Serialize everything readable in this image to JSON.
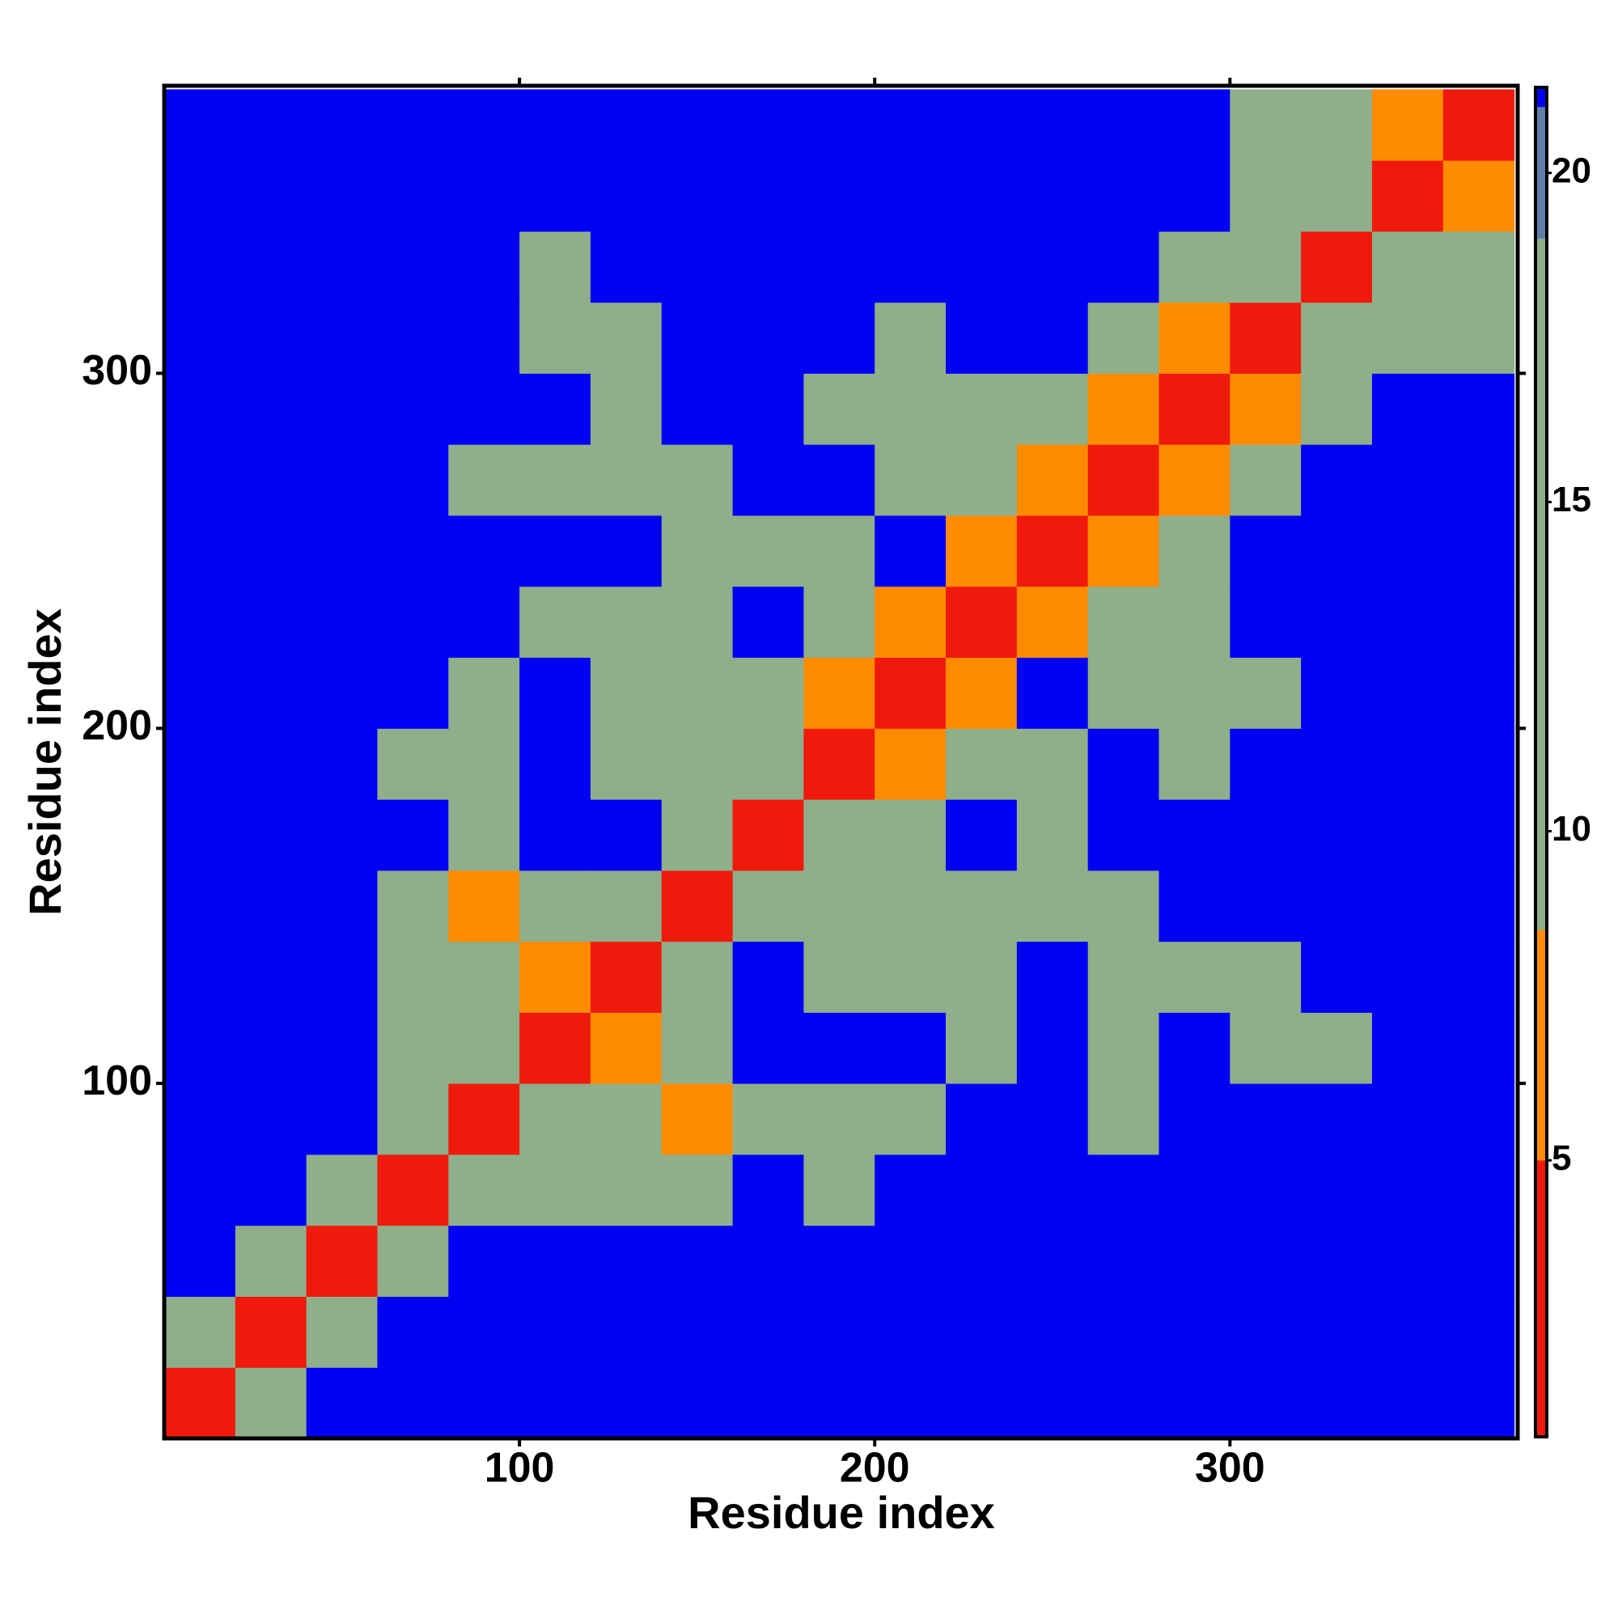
{
  "chart_data": {
    "type": "heatmap",
    "xlabel": "Residue index",
    "ylabel": "Residue index",
    "x": [
      10,
      30,
      50,
      70,
      90,
      110,
      130,
      150,
      170,
      190,
      210,
      230,
      250,
      270,
      290,
      310,
      330,
      350,
      370
    ],
    "y": [
      10,
      30,
      50,
      70,
      90,
      110,
      130,
      150,
      170,
      190,
      210,
      230,
      250,
      270,
      290,
      310,
      330,
      350,
      370
    ],
    "z": [
      [
        4,
        12,
        21,
        21,
        21,
        21,
        21,
        21,
        21,
        21,
        21,
        21,
        21,
        21,
        21,
        21,
        21,
        21,
        21
      ],
      [
        12,
        4,
        12,
        21,
        21,
        21,
        21,
        21,
        21,
        21,
        21,
        21,
        21,
        21,
        21,
        21,
        21,
        21,
        21
      ],
      [
        21,
        12,
        4,
        10,
        21,
        21,
        21,
        21,
        21,
        21,
        21,
        21,
        21,
        21,
        21,
        21,
        21,
        21,
        21
      ],
      [
        21,
        21,
        10,
        4,
        10,
        14,
        16,
        16,
        21,
        14,
        21,
        21,
        21,
        21,
        21,
        21,
        21,
        21,
        21
      ],
      [
        21,
        21,
        21,
        10,
        4,
        10,
        10,
        8,
        14,
        14,
        16,
        21,
        21,
        12,
        21,
        21,
        21,
        21,
        21
      ],
      [
        21,
        21,
        21,
        14,
        10,
        4,
        8,
        10,
        21,
        21,
        21,
        16,
        21,
        12,
        21,
        16,
        14,
        21,
        21
      ],
      [
        21,
        21,
        21,
        16,
        10,
        8,
        4,
        10,
        21,
        12,
        14,
        10,
        21,
        10,
        12,
        14,
        21,
        21,
        21
      ],
      [
        21,
        21,
        21,
        16,
        8,
        10,
        10,
        4,
        10,
        10,
        12,
        10,
        14,
        12,
        21,
        21,
        21,
        21,
        21
      ],
      [
        21,
        21,
        21,
        21,
        14,
        21,
        21,
        10,
        4,
        10,
        12,
        21,
        16,
        21,
        21,
        21,
        21,
        21,
        21
      ],
      [
        21,
        21,
        21,
        14,
        14,
        21,
        12,
        10,
        10,
        4,
        8,
        10,
        16,
        21,
        14,
        21,
        21,
        21,
        21
      ],
      [
        21,
        21,
        21,
        21,
        16,
        21,
        14,
        12,
        12,
        8,
        4,
        8,
        21,
        14,
        12,
        14,
        21,
        21,
        21
      ],
      [
        21,
        21,
        21,
        21,
        21,
        16,
        10,
        10,
        21,
        10,
        8,
        4,
        6,
        10,
        12,
        21,
        21,
        21,
        21
      ],
      [
        21,
        21,
        21,
        21,
        21,
        21,
        21,
        14,
        16,
        16,
        21,
        6,
        4,
        8,
        12,
        21,
        21,
        21,
        21
      ],
      [
        21,
        21,
        21,
        21,
        12,
        12,
        10,
        12,
        21,
        21,
        14,
        10,
        8,
        4,
        8,
        12,
        21,
        21,
        21
      ],
      [
        21,
        21,
        21,
        21,
        21,
        21,
        12,
        21,
        21,
        14,
        12,
        12,
        12,
        8,
        4,
        8,
        12,
        21,
        21
      ],
      [
        21,
        21,
        21,
        21,
        21,
        16,
        14,
        21,
        21,
        21,
        14,
        21,
        21,
        12,
        8,
        4,
        10,
        10,
        10
      ],
      [
        21,
        21,
        21,
        21,
        21,
        14,
        21,
        21,
        21,
        21,
        21,
        21,
        21,
        21,
        12,
        10,
        4,
        10,
        10
      ],
      [
        21,
        21,
        21,
        21,
        21,
        21,
        21,
        21,
        21,
        21,
        21,
        21,
        21,
        21,
        21,
        10,
        10,
        4,
        6
      ],
      [
        21,
        21,
        21,
        21,
        21,
        21,
        21,
        21,
        21,
        21,
        21,
        21,
        21,
        21,
        21,
        10,
        10,
        6,
        4
      ]
    ],
    "xlim": [
      0,
      381
    ],
    "ylim": [
      0,
      381
    ],
    "xticks": [
      100,
      200,
      300
    ],
    "yticks": [
      100,
      200,
      300
    ],
    "zlim": [
      0.8,
      21.3
    ],
    "zticks": [
      5,
      10,
      15,
      20
    ],
    "colorscale": [
      [
        5,
        "#f01a0c"
      ],
      [
        8.5,
        "#ff8c00"
      ],
      [
        19,
        "#8fae8a"
      ],
      [
        21,
        "#5f7fa8"
      ],
      [
        21.3,
        "#0000f5"
      ]
    ]
  }
}
